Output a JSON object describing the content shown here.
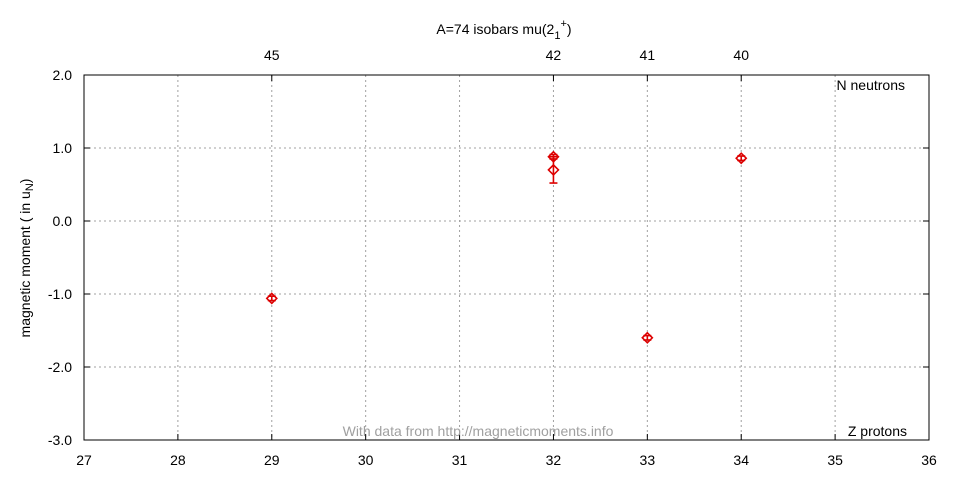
{
  "chart_data": {
    "type": "scatter",
    "title": "A=74 isobars mu(2",
    "title_sub": "1",
    "title_sup": "+",
    "title_close": ")",
    "ylabel": "magnetic moment ( in u",
    "ylabel_sub": "N",
    "ylabel_close": ")",
    "x_axis_label": "Z protons",
    "top_axis_label": "N neutrons",
    "watermark": "With data from http://magneticmoments.info",
    "xlim": [
      27,
      36
    ],
    "ylim": [
      -3.0,
      2.0
    ],
    "x_ticks": [
      27,
      28,
      29,
      30,
      31,
      32,
      33,
      34,
      35,
      36
    ],
    "y_ticks": [
      -3.0,
      -2.0,
      -1.0,
      0.0,
      1.0,
      2.0
    ],
    "y_tick_labels": [
      "-3.0",
      "-2.0",
      "-1.0",
      "0.0",
      "1.0",
      "2.0"
    ],
    "top_ticks": [
      {
        "x": 29,
        "label": "45"
      },
      {
        "x": 32,
        "label": "42"
      },
      {
        "x": 33,
        "label": "41"
      },
      {
        "x": 34,
        "label": "40"
      }
    ],
    "grid": true,
    "marker_color": "#dd0000",
    "points": [
      {
        "x": 29,
        "y": -1.06,
        "err": 0.03
      },
      {
        "x": 32,
        "y": 0.88,
        "err": 0.03
      },
      {
        "x": 32,
        "y": 0.7,
        "err": 0.18
      },
      {
        "x": 33,
        "y": -1.6,
        "err": 0.03
      },
      {
        "x": 34,
        "y": 0.86,
        "err": 0.03
      }
    ]
  }
}
